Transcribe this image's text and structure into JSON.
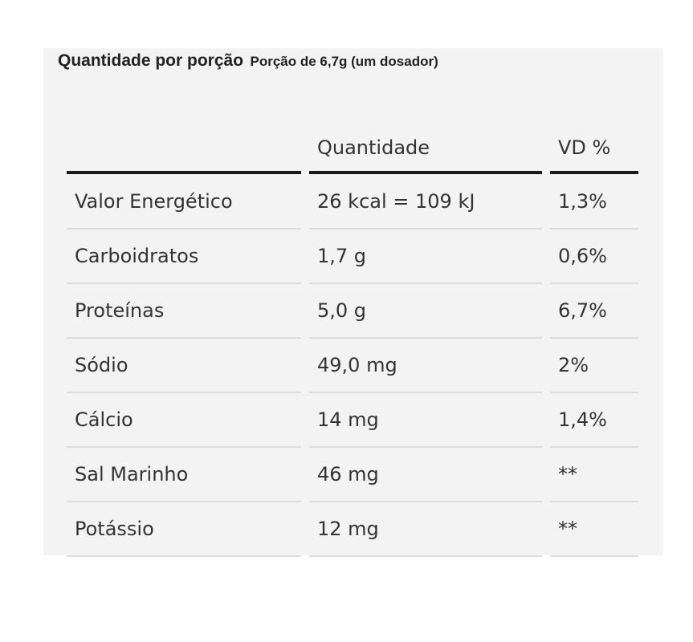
{
  "header": {
    "title": "Quantidade por porção",
    "serving": "Porção de 6,7g (um dosador)"
  },
  "table": {
    "columns": [
      "",
      "Quantidade",
      "VD %"
    ],
    "rows": [
      {
        "name": "Valor Energético",
        "amount": "26 kcal = 109 kJ",
        "dv": "1,3%"
      },
      {
        "name": "Carboidratos",
        "amount": "1,7 g",
        "dv": "0,6%"
      },
      {
        "name": "Proteínas",
        "amount": "5,0 g",
        "dv": "6,7%"
      },
      {
        "name": "Sódio",
        "amount": "49,0 mg",
        "dv": "2%"
      },
      {
        "name": "Cálcio",
        "amount": "14 mg",
        "dv": "1,4%"
      },
      {
        "name": "Sal Marinho",
        "amount": "46 mg",
        "dv": "**"
      },
      {
        "name": "Potássio",
        "amount": "12 mg",
        "dv": "**"
      }
    ]
  }
}
